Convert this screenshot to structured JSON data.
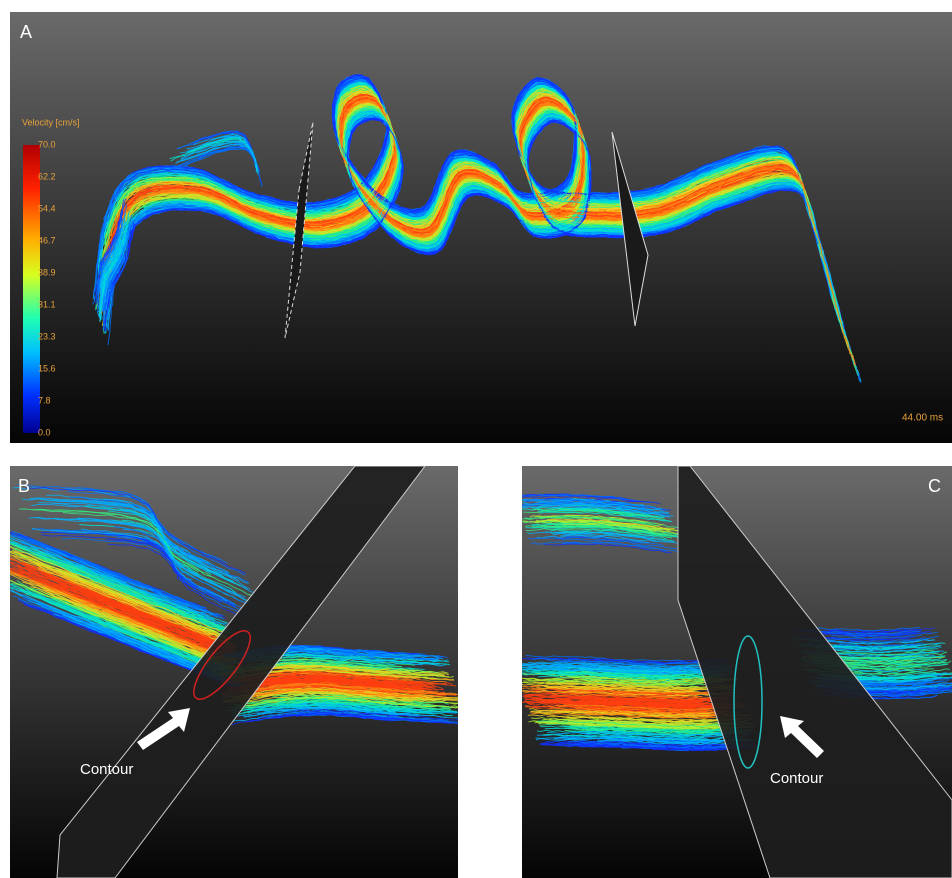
{
  "panels": {
    "a": {
      "label": "A",
      "colorbar": {
        "title": "Velocity [cm/s]",
        "ticks": [
          "70.0",
          "62.2",
          "54.4",
          "46.7",
          "38.9",
          "31.1",
          "23.3",
          "15.6",
          "7.8",
          "0.0"
        ]
      },
      "time": "44.00 ms"
    },
    "b": {
      "label": "B",
      "annotation": "Contour"
    },
    "c": {
      "label": "C",
      "annotation": "Contour"
    }
  }
}
